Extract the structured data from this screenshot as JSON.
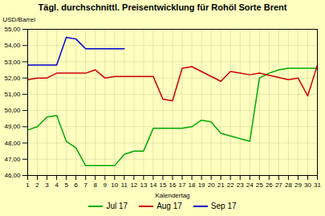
{
  "chart_data": {
    "type": "line",
    "title": "Tägl. durchschnittl. Preisentwicklung für Rohöl Sorte Brent",
    "x_label": "Kalendertag",
    "y_label": "USD/Barrel",
    "xlim": [
      1,
      31
    ],
    "xticks": [
      1,
      2,
      3,
      4,
      5,
      6,
      7,
      8,
      9,
      10,
      11,
      12,
      13,
      14,
      15,
      16,
      17,
      18,
      19,
      20,
      21,
      22,
      23,
      24,
      25,
      26,
      27,
      28,
      29,
      30,
      31
    ],
    "ylim": [
      46.0,
      55.0
    ],
    "yticks": [
      {
        "value": 46.0,
        "label": "46,00"
      },
      {
        "value": 47.0,
        "label": "47,00"
      },
      {
        "value": 48.0,
        "label": "48,00"
      },
      {
        "value": 49.0,
        "label": "49,00"
      },
      {
        "value": 50.0,
        "label": "50,00"
      },
      {
        "value": 51.0,
        "label": "51,00"
      },
      {
        "value": 52.0,
        "label": "52,00"
      },
      {
        "value": 53.0,
        "label": "53,00"
      },
      {
        "value": 54.0,
        "label": "54,00"
      },
      {
        "value": 55.0,
        "label": "55,00"
      }
    ],
    "grid": true,
    "legend": "bottom",
    "series": [
      {
        "name": "Jul 17",
        "color": "#00AA00",
        "x": [
          1,
          2,
          3,
          4,
          5,
          6,
          7,
          10,
          11,
          12,
          13,
          14,
          17,
          18,
          19,
          20,
          21,
          24,
          25,
          26,
          27,
          28,
          31
        ],
        "values": [
          48.8,
          49.0,
          49.6,
          49.7,
          48.1,
          47.7,
          46.6,
          46.6,
          47.3,
          47.5,
          47.5,
          48.9,
          48.9,
          49.0,
          49.4,
          49.3,
          48.6,
          48.1,
          52.0,
          52.3,
          52.5,
          52.6,
          52.6
        ]
      },
      {
        "name": "Aug 17",
        "color": "#CC0000",
        "x": [
          1,
          2,
          3,
          4,
          7,
          8,
          9,
          10,
          11,
          14,
          15,
          16,
          17,
          18,
          21,
          22,
          23,
          24,
          25,
          28,
          29,
          30,
          31
        ],
        "values": [
          51.9,
          52.0,
          52.0,
          52.3,
          52.3,
          52.5,
          52.0,
          52.1,
          52.1,
          52.1,
          50.7,
          50.6,
          52.6,
          52.7,
          51.8,
          52.4,
          52.3,
          52.2,
          52.3,
          51.9,
          52.0,
          50.9,
          52.8
        ]
      },
      {
        "name": "Sep 17",
        "color": "#0000CC",
        "x": [
          1,
          4,
          5,
          6,
          7,
          8,
          11
        ],
        "values": [
          52.8,
          52.8,
          54.5,
          54.4,
          53.8,
          53.8,
          53.8
        ]
      }
    ]
  }
}
